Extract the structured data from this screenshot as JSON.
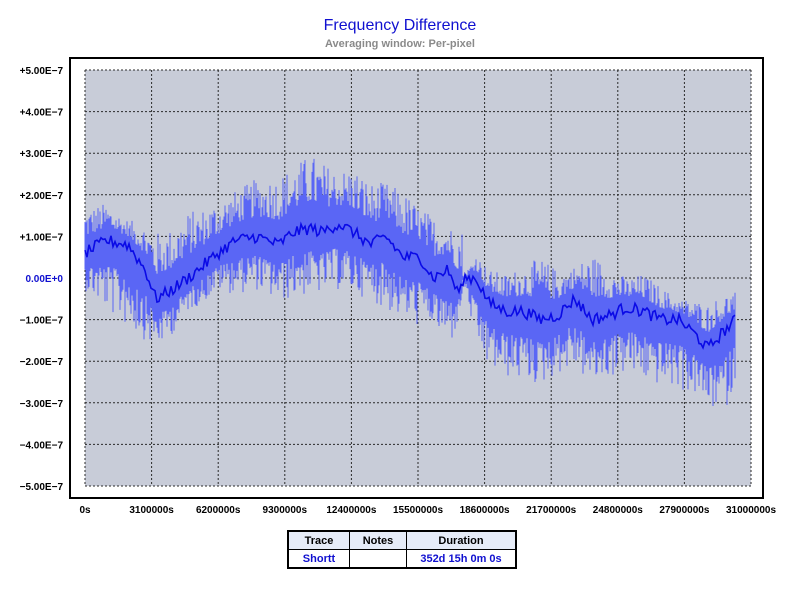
{
  "title": "Frequency Difference",
  "subtitle": "Averaging window: Per-pixel",
  "legend": {
    "headers": [
      "Trace",
      "Notes",
      "Duration"
    ],
    "rows": [
      {
        "trace": "Shortt",
        "notes": "",
        "duration": "352d 15h 0m 0s"
      }
    ]
  },
  "colors": {
    "plot_background": "#c8ccd8",
    "trace_envelope": "#5a66f5",
    "trace_mean": "#0a0ae6",
    "zero_label": "#1010d0"
  },
  "chart_data": {
    "type": "line",
    "title": "Frequency Difference",
    "subtitle": "Averaging window: Per-pixel",
    "xlabel": "",
    "ylabel": "",
    "xlim": [
      0,
      31000000
    ],
    "ylim": [
      -5e-07,
      5e-07
    ],
    "grid": true,
    "x_ticks": [
      0,
      3100000,
      6200000,
      9300000,
      12400000,
      15500000,
      18600000,
      21700000,
      24800000,
      27900000,
      31000000
    ],
    "x_tick_labels": [
      "0s",
      "3100000s",
      "6200000s",
      "9300000s",
      "12400000s",
      "15500000s",
      "18600000s",
      "21700000s",
      "24800000s",
      "27900000s",
      "31000000s"
    ],
    "y_ticks": [
      5e-07,
      4e-07,
      3e-07,
      2e-07,
      1e-07,
      0,
      -1e-07,
      -2e-07,
      -3e-07,
      -4e-07,
      -5e-07
    ],
    "y_tick_labels": [
      "+5.00E−7",
      "+4.00E−7",
      "+3.00E−7",
      "+2.00E−7",
      "+1.00E−7",
      "0.00E+0",
      "−1.00E−7",
      "−2.00E−7",
      "−3.00E−7",
      "−4.00E−7",
      "−5.00E−7"
    ],
    "series": [
      {
        "name": "Shortt",
        "x": [
          0,
          1000000,
          2000000,
          2800000,
          3300000,
          4000000,
          4800000,
          5500000,
          6200000,
          7000000,
          8000000,
          9000000,
          9700000,
          10500000,
          11000000,
          11800000,
          12500000,
          13300000,
          14000000,
          14800000,
          15600000,
          16200000,
          16900000,
          17300000,
          17550000,
          17600000,
          18200000,
          18800000,
          19600000,
          20400000,
          21200000,
          22000000,
          22800000,
          23600000,
          24400000,
          25200000,
          26000000,
          26800000,
          27600000,
          28300000,
          29000000,
          29700000,
          30300000
        ],
        "mean": [
          6e-08,
          9e-08,
          8e-08,
          2e-08,
          -5e-08,
          -3e-08,
          0,
          3e-08,
          6e-08,
          9e-08,
          1e-07,
          8e-08,
          1.1e-07,
          1.2e-07,
          1.1e-07,
          1.3e-07,
          1.1e-07,
          8e-08,
          1e-07,
          5e-08,
          5e-08,
          0,
          2e-08,
          -3e-08,
          -3e-08,
          0,
          0,
          -6e-08,
          -8e-08,
          -8e-08,
          -1e-07,
          -9e-08,
          -5e-08,
          -1e-07,
          -9e-08,
          -7e-08,
          -8e-08,
          -1e-07,
          -1e-07,
          -1.3e-07,
          -1.7e-07,
          -1.3e-07,
          -1e-07
        ],
        "min": [
          -3e-08,
          -8e-08,
          -1.2e-07,
          -1.5e-07,
          -1.7e-07,
          -1.4e-07,
          -8e-08,
          -6e-08,
          -3e-08,
          -4e-08,
          -3e-08,
          -6e-08,
          -5e-08,
          -4e-08,
          -4e-08,
          -3e-08,
          -4e-08,
          -5e-08,
          -8e-08,
          -1e-07,
          -1.2e-07,
          -1.1e-07,
          -1.8e-07,
          -1.2e-07,
          -5e-08,
          0,
          -1.7e-07,
          -2.2e-07,
          -2.4e-07,
          -2.5e-07,
          -2.6e-07,
          -2.3e-07,
          -2.2e-07,
          -2.6e-07,
          -2.4e-07,
          -2.3e-07,
          -2.5e-07,
          -2.6e-07,
          -2.7e-07,
          -2.8e-07,
          -3.1e-07,
          -3.3e-07,
          -2.6e-07
        ],
        "max": [
          1.7e-07,
          1.8e-07,
          1.4e-07,
          1.3e-07,
          1.1e-07,
          1.2e-07,
          1.6e-07,
          1.7e-07,
          1.9e-07,
          2.1e-07,
          2.4e-07,
          2.5e-07,
          2.7e-07,
          3e-07,
          2.8e-07,
          2.6e-07,
          2.7e-07,
          2.3e-07,
          2.3e-07,
          2.1e-07,
          1.7e-07,
          1.5e-07,
          1.3e-07,
          1.2e-07,
          1.2e-07,
          0,
          6e-08,
          2e-08,
          1e-08,
          3e-08,
          5e-08,
          2e-08,
          3e-08,
          6e-08,
          3e-08,
          0,
          1e-08,
          -2e-08,
          -5e-08,
          -5e-08,
          -6e-08,
          -4e-08,
          -3e-08
        ]
      }
    ]
  }
}
